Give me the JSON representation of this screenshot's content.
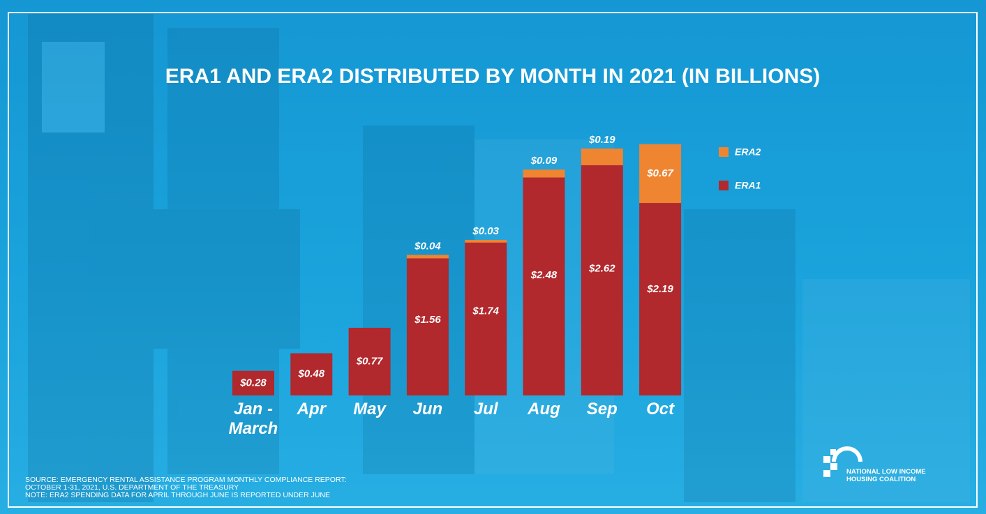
{
  "chart_data": {
    "type": "stacked-bar",
    "title": "ERA1 AND ERA2 DISTRIBUTED BY MONTH IN 2021 (IN BILLIONS)",
    "categories": [
      "Jan - March",
      "Apr",
      "May",
      "Jun",
      "Jul",
      "Aug",
      "Sep",
      "Oct"
    ],
    "series": [
      {
        "name": "ERA1",
        "color": "#b1282d",
        "values": [
          0.28,
          0.48,
          0.77,
          1.56,
          1.74,
          2.48,
          2.62,
          2.19
        ],
        "value_labels": [
          "$0.28",
          "$0.48",
          "$0.77",
          "$1.56",
          "$1.74",
          "$2.48",
          "$2.62",
          "$2.19"
        ]
      },
      {
        "name": "ERA2",
        "color": "#ef8431",
        "values": [
          null,
          null,
          null,
          0.04,
          0.03,
          0.09,
          0.19,
          0.67
        ],
        "value_labels": [
          null,
          null,
          null,
          "$0.04",
          "$0.03",
          "$0.09",
          "$0.19",
          "$0.67"
        ]
      }
    ]
  },
  "source": [
    "SOURCE: EMERGENCY RENTAL ASSISTANCE PROGRAM MONTHLY COMPLIANCE REPORT:",
    "OCTOBER 1-31, 2021, U.S. DEPARTMENT OF THE TREASURY",
    "NOTE: ERA2 SPENDING DATA FOR APRIL THROUGH JUNE IS REPORTED UNDER JUNE"
  ],
  "logo": [
    "NATIONAL LOW INCOME",
    "HOUSING COALITION"
  ]
}
